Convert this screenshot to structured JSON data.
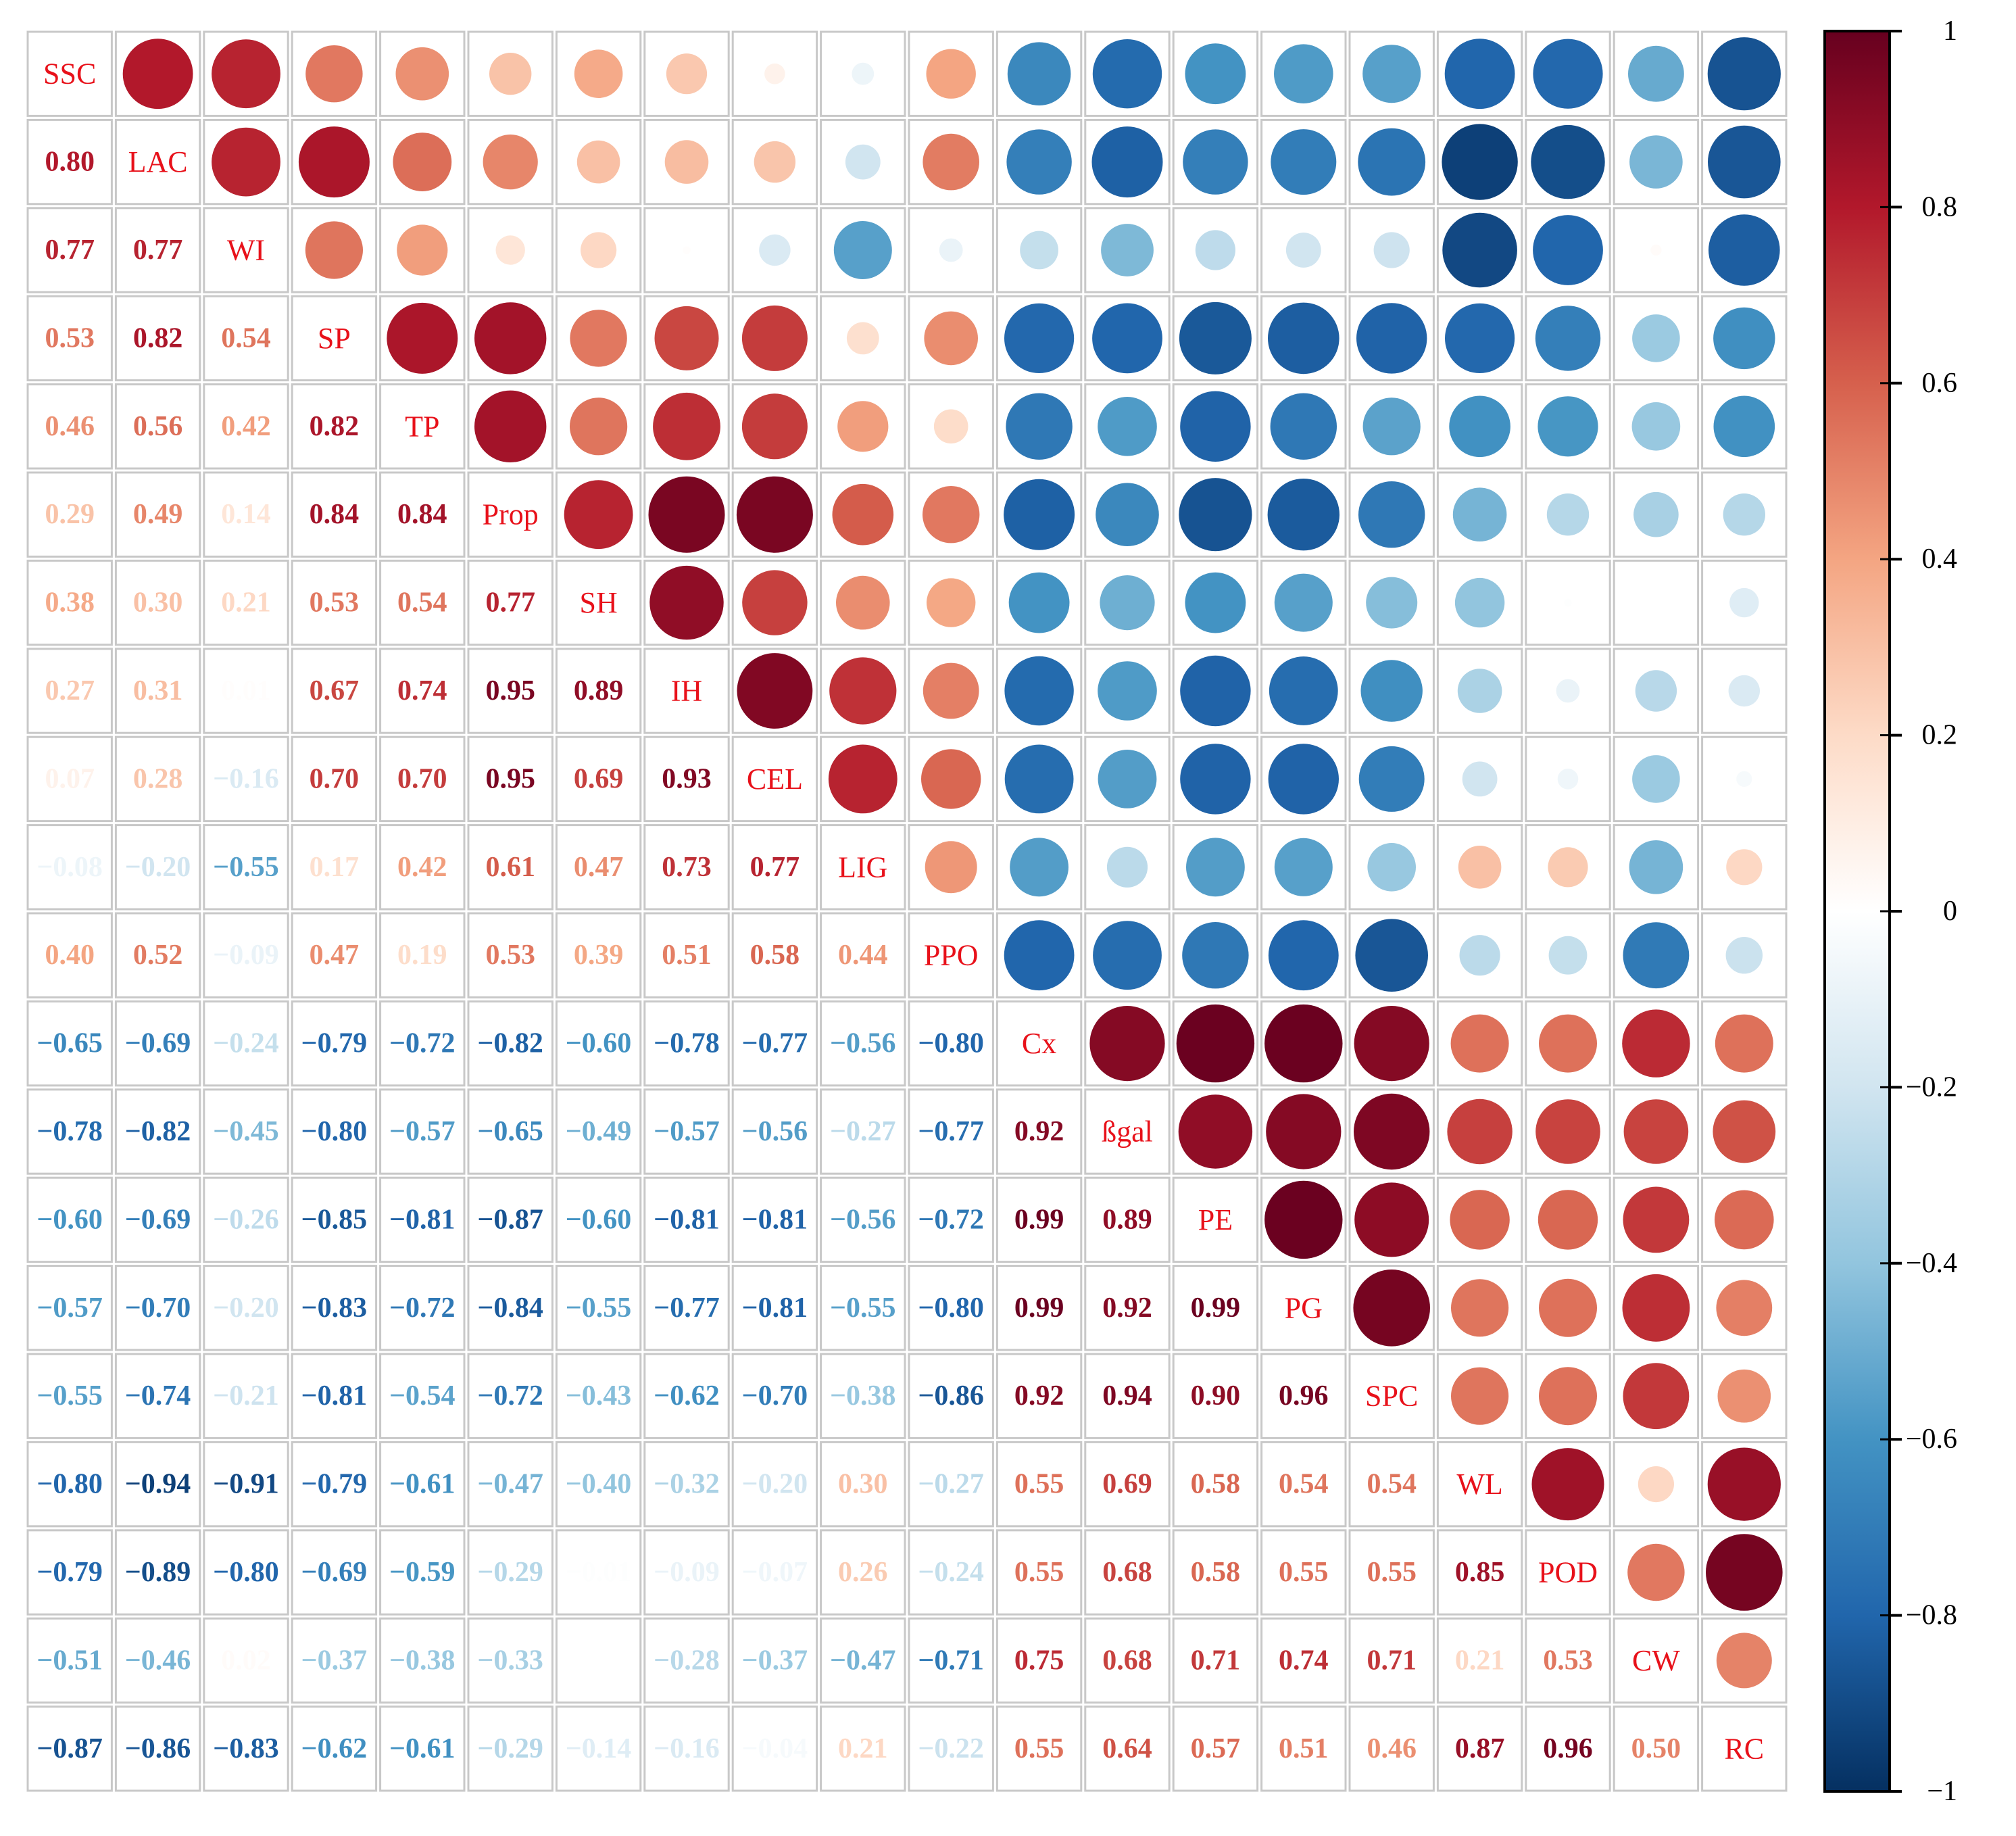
{
  "chart_data": {
    "type": "heatmap",
    "title": "",
    "xlabel": "",
    "ylabel": "",
    "variables": [
      "SSC",
      "LAC",
      "WI",
      "SP",
      "TP",
      "Prop",
      "SH",
      "IH",
      "CEL",
      "LIG",
      "PPO",
      "Cx",
      "ßgal",
      "PE",
      "PG",
      "SPC",
      "WL",
      "POD",
      "CW",
      "RC"
    ],
    "matrix": [
      [
        1,
        0.8,
        0.77,
        0.53,
        0.46,
        0.29,
        0.38,
        0.27,
        0.07,
        -0.08,
        0.4,
        -0.65,
        -0.78,
        -0.6,
        -0.57,
        -0.55,
        -0.8,
        -0.79,
        -0.51,
        -0.87
      ],
      [
        0.8,
        1,
        0.77,
        0.82,
        0.56,
        0.49,
        0.3,
        0.31,
        0.28,
        -0.2,
        0.52,
        -0.69,
        -0.82,
        -0.69,
        -0.7,
        -0.74,
        -0.94,
        -0.89,
        -0.46,
        -0.86
      ],
      [
        0.77,
        0.77,
        1,
        0.54,
        0.42,
        0.14,
        0.21,
        0.01,
        -0.16,
        -0.55,
        -0.09,
        -0.24,
        -0.45,
        -0.26,
        -0.2,
        -0.21,
        -0.91,
        -0.8,
        0.02,
        -0.83
      ],
      [
        0.53,
        0.82,
        0.54,
        1,
        0.82,
        0.84,
        0.53,
        0.67,
        0.7,
        0.17,
        0.47,
        -0.79,
        -0.8,
        -0.85,
        -0.83,
        -0.81,
        -0.79,
        -0.69,
        -0.37,
        -0.62
      ],
      [
        0.46,
        0.56,
        0.42,
        0.82,
        1,
        0.84,
        0.54,
        0.74,
        0.7,
        0.42,
        0.19,
        -0.72,
        -0.57,
        -0.81,
        -0.72,
        -0.54,
        -0.61,
        -0.59,
        -0.38,
        -0.61
      ],
      [
        0.29,
        0.49,
        0.14,
        0.84,
        0.84,
        1,
        0.77,
        0.95,
        0.95,
        0.61,
        0.53,
        -0.82,
        -0.65,
        -0.87,
        -0.84,
        -0.72,
        -0.47,
        -0.29,
        -0.33,
        -0.29
      ],
      [
        0.38,
        0.3,
        0.21,
        0.53,
        0.54,
        0.77,
        1,
        0.89,
        0.69,
        0.47,
        0.39,
        -0.6,
        -0.49,
        -0.6,
        -0.55,
        -0.43,
        -0.4,
        -0.01,
        0.0,
        -0.14
      ],
      [
        0.27,
        0.31,
        0.01,
        0.67,
        0.74,
        0.95,
        0.89,
        1,
        0.93,
        0.73,
        0.51,
        -0.78,
        -0.57,
        -0.81,
        -0.77,
        -0.62,
        -0.32,
        -0.09,
        -0.28,
        -0.16
      ],
      [
        0.07,
        0.28,
        -0.16,
        0.7,
        0.7,
        0.95,
        0.69,
        0.93,
        1,
        0.77,
        0.58,
        -0.77,
        -0.56,
        -0.81,
        -0.81,
        -0.7,
        -0.2,
        -0.07,
        -0.37,
        -0.04
      ],
      [
        -0.08,
        -0.2,
        -0.55,
        0.17,
        0.42,
        0.61,
        0.47,
        0.73,
        0.77,
        1,
        0.44,
        -0.56,
        -0.27,
        -0.56,
        -0.55,
        -0.38,
        0.3,
        0.26,
        -0.47,
        0.21
      ],
      [
        0.4,
        0.52,
        -0.09,
        0.47,
        0.19,
        0.53,
        0.39,
        0.51,
        0.58,
        0.44,
        1,
        -0.8,
        -0.77,
        -0.72,
        -0.8,
        -0.86,
        -0.27,
        -0.24,
        -0.71,
        -0.22
      ],
      [
        -0.65,
        -0.69,
        -0.24,
        -0.79,
        -0.72,
        -0.82,
        -0.6,
        -0.78,
        -0.77,
        -0.56,
        -0.8,
        1,
        0.92,
        0.99,
        0.99,
        0.92,
        0.55,
        0.55,
        0.75,
        0.55
      ],
      [
        -0.78,
        -0.82,
        -0.45,
        -0.8,
        -0.57,
        -0.65,
        -0.49,
        -0.57,
        -0.56,
        -0.27,
        -0.77,
        0.92,
        1,
        0.89,
        0.92,
        0.94,
        0.69,
        0.68,
        0.68,
        0.64
      ],
      [
        -0.6,
        -0.69,
        -0.26,
        -0.85,
        -0.81,
        -0.87,
        -0.6,
        -0.81,
        -0.81,
        -0.56,
        -0.72,
        0.99,
        0.89,
        1,
        0.99,
        0.9,
        0.58,
        0.58,
        0.71,
        0.57
      ],
      [
        -0.57,
        -0.7,
        -0.2,
        -0.83,
        -0.72,
        -0.84,
        -0.55,
        -0.77,
        -0.81,
        -0.55,
        -0.8,
        0.99,
        0.92,
        0.99,
        1,
        0.96,
        0.54,
        0.55,
        0.74,
        0.51
      ],
      [
        -0.55,
        -0.74,
        -0.21,
        -0.81,
        -0.54,
        -0.72,
        -0.43,
        -0.62,
        -0.7,
        -0.38,
        -0.86,
        0.92,
        0.94,
        0.9,
        0.96,
        1,
        0.54,
        0.55,
        0.71,
        0.46
      ],
      [
        -0.8,
        -0.94,
        -0.91,
        -0.79,
        -0.61,
        -0.47,
        -0.4,
        -0.32,
        -0.2,
        0.3,
        -0.27,
        0.55,
        0.69,
        0.58,
        0.54,
        0.54,
        1,
        0.85,
        0.21,
        0.87
      ],
      [
        -0.79,
        -0.89,
        -0.8,
        -0.69,
        -0.59,
        -0.29,
        -0.01,
        -0.09,
        -0.07,
        0.26,
        -0.24,
        0.55,
        0.68,
        0.58,
        0.55,
        0.55,
        0.85,
        1,
        0.53,
        0.96
      ],
      [
        -0.51,
        -0.46,
        0.02,
        -0.37,
        -0.38,
        -0.33,
        0.0,
        -0.28,
        -0.37,
        -0.47,
        -0.71,
        0.75,
        0.68,
        0.71,
        0.74,
        0.71,
        0.21,
        0.53,
        1,
        0.5
      ],
      [
        -0.87,
        -0.86,
        -0.83,
        -0.62,
        -0.61,
        -0.29,
        -0.14,
        -0.16,
        -0.04,
        0.21,
        -0.22,
        0.55,
        0.64,
        0.57,
        0.51,
        0.46,
        0.87,
        0.96,
        0.5,
        1
      ]
    ],
    "lower_triangle": "numbers",
    "upper_triangle": "circles",
    "diagonal": "variable names",
    "color_scale": {
      "min": -1,
      "max": 1,
      "ticks": [
        "1",
        "0.8",
        "0.6",
        "0.4",
        "0.2",
        "0",
        "−0.2",
        "−0.4",
        "−0.6",
        "−0.8",
        "−1"
      ],
      "colors": [
        "#67001F",
        "#B2182B",
        "#D6604D",
        "#F4A582",
        "#FDDBC7",
        "#FFFFFF",
        "#D1E5F0",
        "#92C5DE",
        "#4393C3",
        "#2166AC",
        "#053061"
      ]
    },
    "diagonal_label_color": "#E8111A",
    "grid": true,
    "legend": "right colorbar"
  }
}
